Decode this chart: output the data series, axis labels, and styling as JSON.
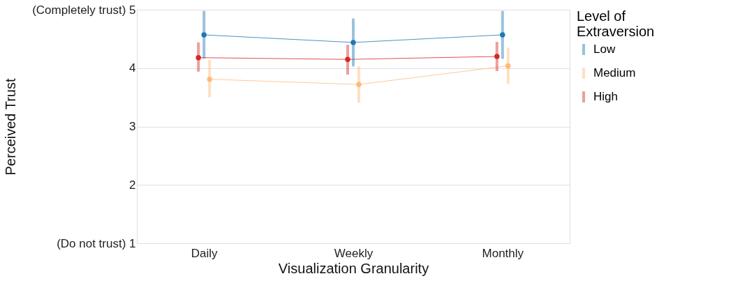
{
  "chart_data": {
    "type": "line",
    "xlabel": "Visualization Granularity",
    "ylabel": "Perceived Trust",
    "legend_title": "Level of\n Extraversion",
    "categories": [
      "Daily",
      "Weekly",
      "Monthly"
    ],
    "ylim": [
      1,
      5
    ],
    "yticks": [
      {
        "value": 1,
        "label": "(Do not trust) 1"
      },
      2,
      3,
      4,
      {
        "value": 5,
        "label": "(Completely trust) 5"
      }
    ],
    "grid": "y",
    "legend": "right",
    "marker": "circle",
    "series": [
      {
        "name": "Low",
        "color": "#1f77b4",
        "values": [
          4.57,
          4.44,
          4.57
        ],
        "errors": [
          [
            4.16,
            4.98
          ],
          [
            4.03,
            4.85
          ],
          [
            4.16,
            4.98
          ]
        ]
      },
      {
        "name": "Medium",
        "color": "#ffbb78",
        "values": [
          3.81,
          3.72,
          4.04
        ],
        "errors": [
          [
            3.5,
            4.14
          ],
          [
            3.41,
            4.03
          ],
          [
            3.73,
            4.35
          ]
        ]
      },
      {
        "name": "High",
        "color": "#d62728",
        "values": [
          4.18,
          4.15,
          4.2
        ],
        "errors": [
          [
            3.94,
            4.44
          ],
          [
            3.89,
            4.4
          ],
          [
            3.95,
            4.45
          ]
        ]
      }
    ]
  }
}
